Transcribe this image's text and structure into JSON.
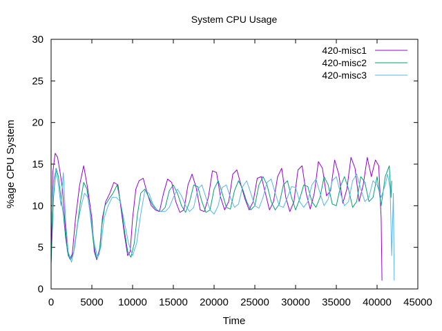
{
  "chart_data": {
    "type": "line",
    "title": "System CPU Usage",
    "xlabel": "Time",
    "ylabel": "%age CPU System",
    "xlim": [
      0,
      45000
    ],
    "ylim": [
      0,
      30
    ],
    "x_ticks": [
      "0",
      "5000",
      "10000",
      "15000",
      "20000",
      "25000",
      "30000",
      "35000",
      "40000",
      "45000"
    ],
    "y_ticks": [
      "0",
      "5",
      "10",
      "15",
      "20",
      "25",
      "30"
    ],
    "grid": false,
    "legend_position": "top-right",
    "series": [
      {
        "name": "420-misc1",
        "color": "#9400d3",
        "x": [
          0,
          200,
          500,
          800,
          1100,
          1400,
          1700,
          2000,
          2300,
          2600,
          3000,
          3500,
          4000,
          4500,
          5000,
          5300,
          5600,
          6000,
          6300,
          6700,
          7200,
          7700,
          8200,
          8600,
          9000,
          9400,
          9700,
          10000,
          10400,
          10800,
          11300,
          11800,
          12300,
          12800,
          13300,
          13800,
          14300,
          14800,
          15300,
          15800,
          16300,
          16800,
          17300,
          17800,
          18300,
          18800,
          19300,
          19800,
          20300,
          20800,
          21300,
          21800,
          22300,
          22800,
          23300,
          23800,
          24300,
          24800,
          25300,
          25800,
          26300,
          26800,
          27300,
          27800,
          28300,
          28800,
          29300,
          29800,
          30300,
          30800,
          31300,
          31800,
          32300,
          32800,
          33300,
          33800,
          34300,
          34800,
          35300,
          35800,
          36300,
          36800,
          37300,
          37800,
          38300,
          38800,
          39300,
          39800,
          40200,
          40500,
          40600
        ],
        "y": [
          3,
          14,
          16.3,
          15.8,
          14,
          12,
          8,
          4.5,
          3.6,
          4.2,
          8.5,
          12.5,
          14.8,
          12,
          8.5,
          4.5,
          3.5,
          5,
          8.5,
          10.5,
          11.5,
          12.8,
          12.5,
          9.5,
          6.5,
          4,
          4.5,
          8.5,
          12,
          13,
          13.3,
          11.5,
          10,
          9.5,
          9.3,
          11.5,
          13.2,
          12.8,
          10.5,
          9.2,
          9.5,
          12.5,
          13.8,
          12.2,
          9.5,
          9.3,
          11,
          14.2,
          14,
          11,
          9.5,
          10.5,
          13.8,
          14.3,
          12.5,
          10.8,
          9.5,
          10.5,
          13.3,
          13.5,
          11.5,
          9.5,
          10.5,
          13.5,
          14.5,
          11,
          9.3,
          10.5,
          14.3,
          14.8,
          11.5,
          9.6,
          11.5,
          15.3,
          14.5,
          11.2,
          11.8,
          15.5,
          13.8,
          10.3,
          12,
          15.8,
          14.5,
          10.5,
          12.5,
          15.8,
          13.5,
          15.5,
          14.8,
          8.5,
          1
        ]
      },
      {
        "name": "420-misc2",
        "color": "#009e73",
        "x": [
          0,
          300,
          600,
          900,
          1200,
          1500,
          1800,
          2100,
          2400,
          2800,
          3200,
          3600,
          4000,
          4400,
          4800,
          5200,
          5600,
          5900,
          6200,
          6600,
          7100,
          7600,
          8100,
          8600,
          9000,
          9400,
          9800,
          10200,
          10600,
          11000,
          11500,
          12000,
          12500,
          13000,
          13500,
          14000,
          14500,
          15000,
          15500,
          16000,
          16500,
          17000,
          17500,
          18000,
          18500,
          19000,
          19500,
          20000,
          20500,
          21000,
          21500,
          22000,
          22500,
          23000,
          23500,
          24000,
          24500,
          25000,
          25500,
          26000,
          26500,
          27000,
          27500,
          28000,
          28500,
          29000,
          29500,
          30000,
          30500,
          31000,
          31500,
          32000,
          32500,
          33000,
          33500,
          34000,
          34500,
          35000,
          35500,
          36000,
          36500,
          37000,
          37500,
          38000,
          38500,
          39000,
          39500,
          40000,
          40500,
          41000,
          41500,
          41700,
          41800
        ],
        "y": [
          3,
          11,
          14.5,
          13.5,
          11,
          9,
          6,
          4,
          3.5,
          4.5,
          7.5,
          10.5,
          12.8,
          12,
          9,
          5.5,
          3.6,
          4.2,
          7.5,
          10,
          10.8,
          11.5,
          12.5,
          10,
          7,
          4.5,
          3.8,
          5.5,
          9,
          11.5,
          12,
          11,
          10,
          9.5,
          9.3,
          9.8,
          11.8,
          12.5,
          11.5,
          10,
          9.2,
          10.5,
          12.5,
          12.3,
          10.5,
          9.2,
          9.5,
          12,
          13,
          11.5,
          9.8,
          9.6,
          11.8,
          13,
          12,
          10.5,
          9.5,
          10,
          12.5,
          13.5,
          12.5,
          10.5,
          9.5,
          10.2,
          12.5,
          13,
          11,
          9.5,
          10.8,
          12.5,
          12.3,
          10.5,
          9.8,
          11,
          13.5,
          12.5,
          10.2,
          10,
          12.3,
          13.5,
          12,
          9.8,
          10.5,
          13.5,
          12.8,
          10.5,
          11,
          13.5,
          10,
          13.5,
          14.8,
          11,
          13
        ]
      },
      {
        "name": "420-misc3",
        "color": "#56b4e9",
        "x": [
          0,
          300,
          600,
          900,
          1200,
          1500,
          1800,
          2100,
          2500,
          2900,
          3300,
          3700,
          4100,
          4500,
          4900,
          5300,
          5700,
          6100,
          6500,
          7000,
          7500,
          8000,
          8500,
          9000,
          9500,
          10000,
          10500,
          11000,
          11500,
          12000,
          12500,
          13000,
          13500,
          14000,
          14500,
          15000,
          15500,
          16000,
          16500,
          17000,
          17500,
          18000,
          18500,
          19000,
          19500,
          20000,
          20500,
          21000,
          21500,
          22000,
          22500,
          23000,
          23500,
          24000,
          24500,
          25000,
          25500,
          26000,
          26500,
          27000,
          27500,
          28000,
          28500,
          29000,
          29500,
          30000,
          30500,
          31000,
          31500,
          32000,
          32500,
          33000,
          33500,
          34000,
          34500,
          35000,
          35500,
          36000,
          36500,
          37000,
          37500,
          38000,
          38500,
          39000,
          39500,
          40000,
          40500,
          41000,
          41300,
          41600,
          41800,
          42000,
          42100
        ],
        "y": [
          7,
          13,
          14.3,
          12.5,
          10,
          14,
          8,
          4.5,
          3.2,
          5,
          8,
          10,
          11.5,
          11,
          8.5,
          5.5,
          3.8,
          5,
          8.5,
          10,
          11,
          11,
          10.5,
          8,
          5.5,
          4,
          5.5,
          9,
          11.8,
          11.5,
          10.2,
          9.5,
          9.3,
          9.3,
          9.8,
          11,
          12,
          11.2,
          10,
          9.3,
          9.8,
          12,
          12.5,
          11,
          9.5,
          9,
          10,
          12.2,
          12.5,
          11,
          9.8,
          10.2,
          12.3,
          13,
          11.5,
          10,
          9.7,
          11,
          12.8,
          13.2,
          11.5,
          10,
          9.8,
          11,
          12.3,
          12.2,
          10.5,
          9.8,
          10.5,
          12.5,
          13.2,
          11.5,
          10,
          10.8,
          13,
          13.5,
          11.5,
          10,
          10.5,
          13,
          13.8,
          12,
          10.5,
          11,
          13,
          12.5,
          11,
          12.5,
          13.8,
          12,
          4,
          11.5,
          1
        ]
      }
    ]
  }
}
